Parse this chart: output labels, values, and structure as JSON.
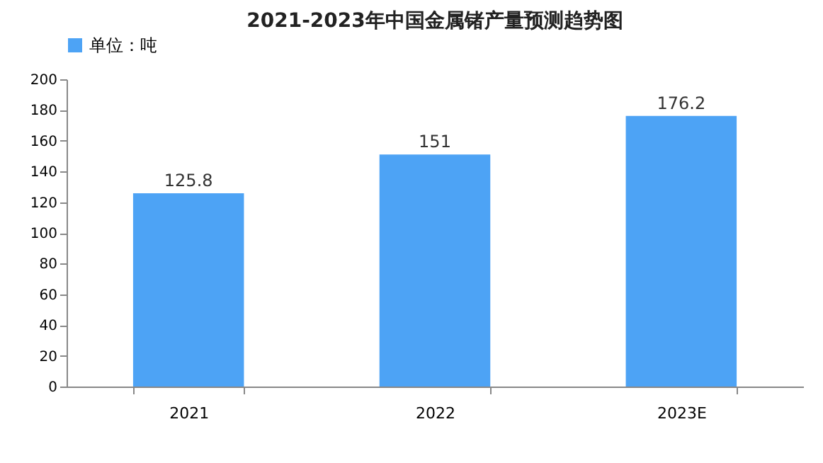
{
  "chart_data": {
    "type": "bar",
    "title": "2021-2023年中国金属锗产量预测趋势图",
    "categories": [
      "2021",
      "2022",
      "2023E"
    ],
    "series": [
      {
        "name": "单位：吨",
        "color": "#4da3f5",
        "values": [
          125.8,
          151,
          176.2
        ]
      }
    ],
    "ylim": [
      0,
      200
    ],
    "yticks": [
      0,
      20,
      40,
      60,
      80,
      100,
      120,
      140,
      160,
      180,
      200
    ],
    "grid": false,
    "legend": "top",
    "data_labels": true
  }
}
